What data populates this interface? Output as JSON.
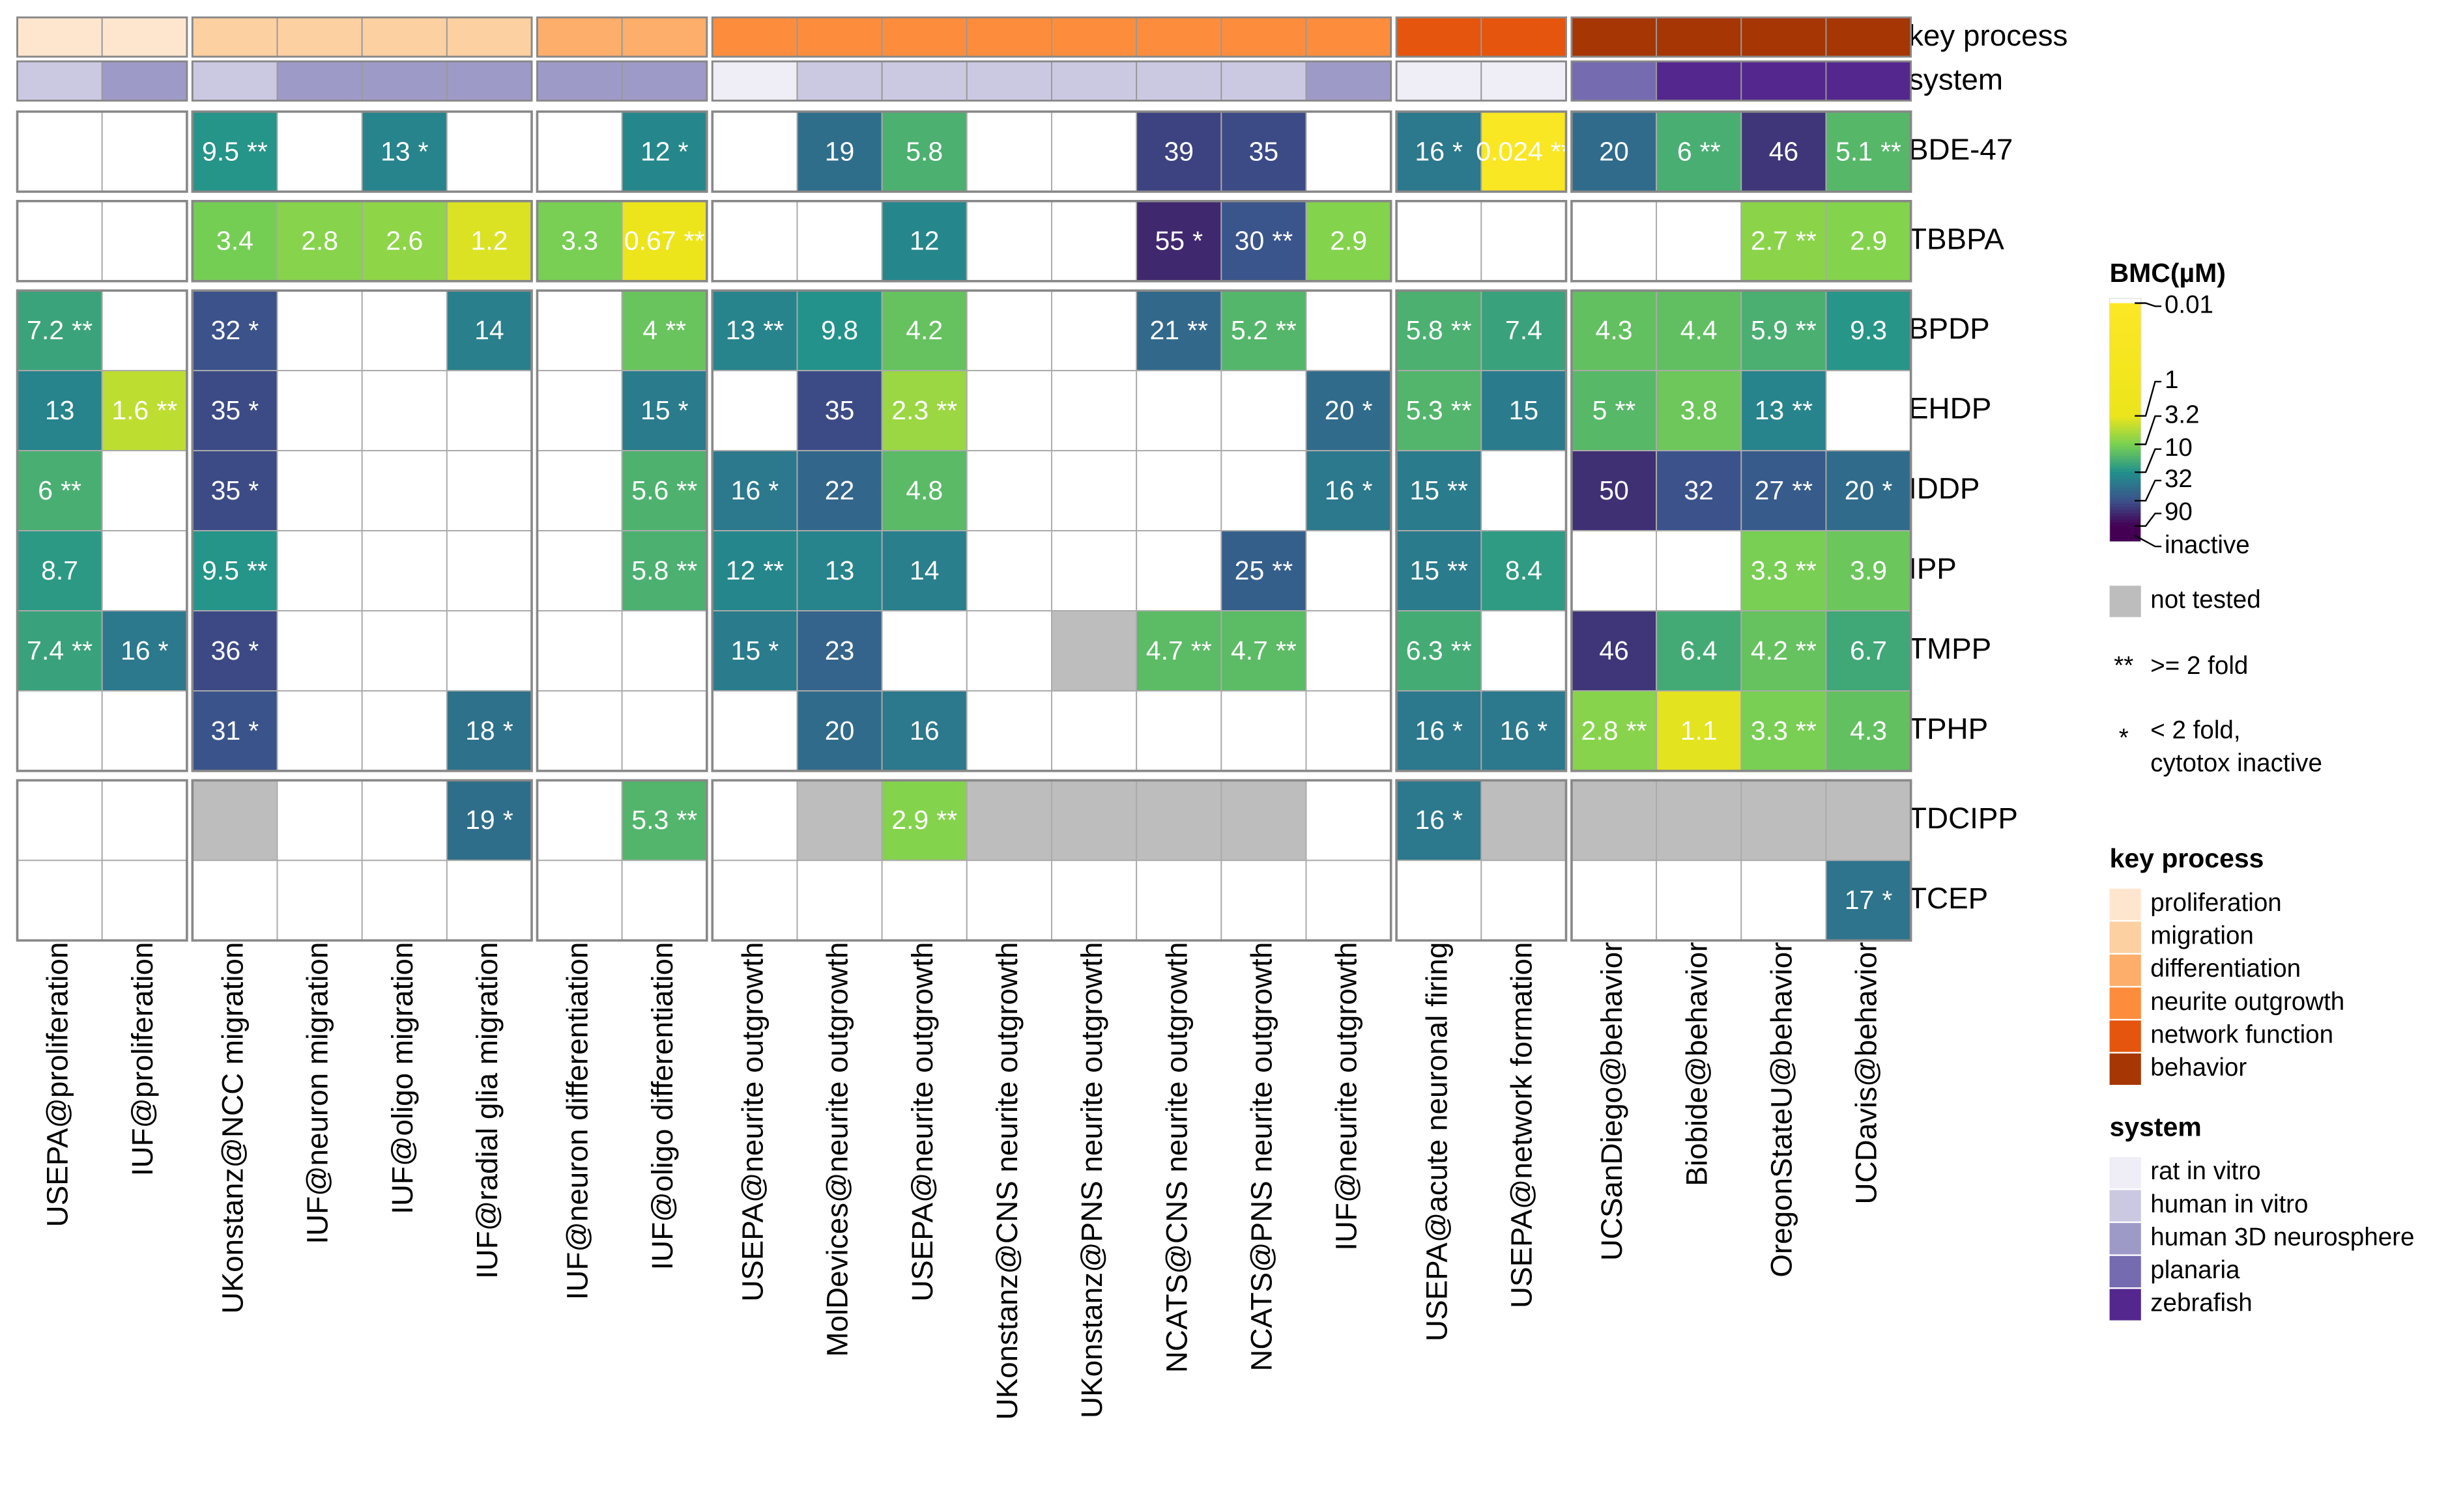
{
  "chart_data": {
    "type": "heatmap",
    "rows": [
      "BDE-47",
      "TBBPA",
      "BPDP",
      "EHDP",
      "IDDP",
      "IPP",
      "TMPP",
      "TPHP",
      "TDCIPP",
      "TCEP"
    ],
    "columns": [
      {
        "label": "USEPA@proliferation",
        "key_process": "proliferation",
        "system": "human in vitro"
      },
      {
        "label": "IUF@proliferation",
        "key_process": "proliferation",
        "system": "human 3D neurosphere"
      },
      {
        "label": "UKonstanz@NCC migration",
        "key_process": "migration",
        "system": "human in vitro"
      },
      {
        "label": "IUF@neuron migration",
        "key_process": "migration",
        "system": "human 3D neurosphere"
      },
      {
        "label": "IUF@oligo migration",
        "key_process": "migration",
        "system": "human 3D neurosphere"
      },
      {
        "label": "IUF@radial glia migration",
        "key_process": "migration",
        "system": "human 3D neurosphere"
      },
      {
        "label": "IUF@neuron differentiation",
        "key_process": "differentiation",
        "system": "human 3D neurosphere"
      },
      {
        "label": "IUF@oligo differentiation",
        "key_process": "differentiation",
        "system": "human 3D neurosphere"
      },
      {
        "label": "USEPA@neurite outgrowth",
        "key_process": "neurite outgrowth",
        "system": "rat in vitro"
      },
      {
        "label": "MolDevices@neurite outgrowth",
        "key_process": "neurite outgrowth",
        "system": "human in vitro"
      },
      {
        "label": "USEPA@neurite outgrowth",
        "key_process": "neurite outgrowth",
        "system": "human in vitro"
      },
      {
        "label": "UKonstanz@CNS neurite outgrowth",
        "key_process": "neurite outgrowth",
        "system": "human in vitro"
      },
      {
        "label": "UKonstanz@PNS neurite outgrowth",
        "key_process": "neurite outgrowth",
        "system": "human in vitro"
      },
      {
        "label": "NCATS@CNS neurite outgrowth",
        "key_process": "neurite outgrowth",
        "system": "human in vitro"
      },
      {
        "label": "NCATS@PNS neurite outgrowth",
        "key_process": "neurite outgrowth",
        "system": "human in vitro"
      },
      {
        "label": "IUF@neurite outgrowth",
        "key_process": "neurite outgrowth",
        "system": "human 3D neurosphere"
      },
      {
        "label": "USEPA@acute neuronal firing",
        "key_process": "network function",
        "system": "rat in vitro"
      },
      {
        "label": "USEPA@network formation",
        "key_process": "network function",
        "system": "rat in vitro"
      },
      {
        "label": "UCSanDiego@behavior",
        "key_process": "behavior",
        "system": "planaria"
      },
      {
        "label": "Biobide@behavior",
        "key_process": "behavior",
        "system": "zebrafish"
      },
      {
        "label": "OregonStateU@behavior",
        "key_process": "behavior",
        "system": "zebrafish"
      },
      {
        "label": "UCDavis@behavior",
        "key_process": "behavior",
        "system": "zebrafish"
      }
    ],
    "values": [
      [
        null,
        null,
        9.5,
        null,
        13,
        null,
        null,
        12,
        null,
        19,
        5.8,
        null,
        null,
        39,
        35,
        null,
        16,
        0.024,
        20,
        6,
        46,
        5.1
      ],
      [
        null,
        null,
        3.4,
        2.8,
        2.6,
        1.2,
        3.3,
        0.67,
        null,
        null,
        12,
        null,
        null,
        55,
        30,
        2.9,
        null,
        null,
        null,
        null,
        2.7,
        2.9
      ],
      [
        7.2,
        null,
        32,
        null,
        null,
        14,
        null,
        4,
        13,
        9.8,
        4.2,
        null,
        null,
        21,
        5.2,
        null,
        5.8,
        7.4,
        4.3,
        4.4,
        5.9,
        9.3
      ],
      [
        13,
        1.6,
        35,
        null,
        null,
        null,
        null,
        15,
        null,
        35,
        2.3,
        null,
        null,
        null,
        null,
        20,
        5.3,
        15,
        5,
        3.8,
        13,
        null
      ],
      [
        6,
        null,
        35,
        null,
        null,
        null,
        null,
        5.6,
        16,
        22,
        4.8,
        null,
        null,
        null,
        null,
        16,
        15,
        null,
        50,
        32,
        27,
        20
      ],
      [
        8.7,
        null,
        9.5,
        null,
        null,
        null,
        null,
        5.8,
        12,
        13,
        14,
        null,
        null,
        null,
        25,
        null,
        15,
        8.4,
        null,
        null,
        3.3,
        3.9
      ],
      [
        7.4,
        16,
        36,
        null,
        null,
        null,
        null,
        null,
        15,
        23,
        null,
        null,
        null,
        4.7,
        4.7,
        null,
        6.3,
        null,
        46,
        6.4,
        4.2,
        6.7
      ],
      [
        null,
        null,
        31,
        null,
        null,
        18,
        null,
        null,
        null,
        20,
        16,
        null,
        null,
        null,
        null,
        null,
        16,
        16,
        2.8,
        1.1,
        3.3,
        4.3
      ],
      [
        null,
        null,
        null,
        null,
        null,
        19,
        null,
        5.3,
        null,
        null,
        2.9,
        null,
        null,
        null,
        null,
        null,
        16,
        null,
        null,
        null,
        null,
        null
      ],
      [
        null,
        null,
        null,
        null,
        null,
        null,
        null,
        null,
        null,
        null,
        null,
        null,
        null,
        null,
        null,
        null,
        null,
        null,
        null,
        null,
        null,
        17
      ]
    ],
    "flags": [
      [
        null,
        null,
        "**",
        null,
        "*",
        null,
        null,
        "*",
        null,
        null,
        null,
        null,
        null,
        null,
        null,
        null,
        "*",
        "**",
        null,
        "**",
        null,
        "**"
      ],
      [
        null,
        null,
        null,
        null,
        null,
        null,
        null,
        "**",
        null,
        null,
        null,
        null,
        null,
        "*",
        "**",
        null,
        null,
        null,
        null,
        null,
        "**",
        null
      ],
      [
        "**",
        null,
        "*",
        null,
        null,
        null,
        null,
        "**",
        "**",
        null,
        null,
        null,
        null,
        "**",
        "**",
        null,
        "**",
        null,
        null,
        null,
        "**",
        null
      ],
      [
        null,
        "**",
        "*",
        null,
        null,
        null,
        null,
        "*",
        null,
        null,
        "**",
        null,
        null,
        null,
        null,
        "*",
        "**",
        null,
        "**",
        null,
        "**",
        null
      ],
      [
        "**",
        null,
        "*",
        null,
        null,
        null,
        null,
        "**",
        "*",
        null,
        null,
        null,
        null,
        null,
        null,
        "*",
        "**",
        null,
        null,
        null,
        "**",
        "*"
      ],
      [
        null,
        null,
        "**",
        null,
        null,
        null,
        null,
        "**",
        "**",
        null,
        null,
        null,
        null,
        null,
        "**",
        null,
        "**",
        null,
        null,
        null,
        "**",
        null
      ],
      [
        "**",
        "*",
        "*",
        null,
        null,
        null,
        null,
        null,
        "*",
        null,
        null,
        null,
        null,
        "**",
        "**",
        null,
        "**",
        null,
        null,
        null,
        "**",
        null
      ],
      [
        null,
        null,
        "*",
        null,
        null,
        "*",
        null,
        null,
        null,
        null,
        null,
        null,
        null,
        null,
        null,
        null,
        "*",
        "*",
        "**",
        null,
        "**",
        null
      ],
      [
        null,
        null,
        null,
        null,
        null,
        "*",
        null,
        "**",
        null,
        null,
        "**",
        null,
        null,
        null,
        null,
        null,
        "*",
        null,
        null,
        null,
        null,
        null
      ],
      [
        null,
        null,
        null,
        null,
        null,
        null,
        null,
        null,
        null,
        null,
        null,
        null,
        null,
        null,
        null,
        null,
        null,
        null,
        null,
        null,
        null,
        "*"
      ]
    ],
    "not_tested": [
      [
        false,
        false,
        false,
        false,
        false,
        false,
        false,
        false,
        false,
        false,
        false,
        false,
        false,
        false,
        false,
        false,
        false,
        false,
        false,
        false,
        false,
        false
      ],
      [
        false,
        false,
        false,
        false,
        false,
        false,
        false,
        false,
        false,
        false,
        false,
        false,
        false,
        false,
        false,
        false,
        false,
        false,
        false,
        false,
        false,
        false
      ],
      [
        false,
        false,
        false,
        false,
        false,
        false,
        false,
        false,
        false,
        false,
        false,
        false,
        false,
        false,
        false,
        false,
        false,
        false,
        false,
        false,
        false,
        false
      ],
      [
        false,
        false,
        false,
        false,
        false,
        false,
        false,
        false,
        false,
        false,
        false,
        false,
        false,
        false,
        false,
        false,
        false,
        false,
        false,
        false,
        false,
        false
      ],
      [
        false,
        false,
        false,
        false,
        false,
        false,
        false,
        false,
        false,
        false,
        false,
        false,
        false,
        false,
        false,
        false,
        false,
        false,
        false,
        false,
        false,
        false
      ],
      [
        false,
        false,
        false,
        false,
        false,
        false,
        false,
        false,
        false,
        false,
        false,
        false,
        false,
        false,
        false,
        false,
        false,
        false,
        false,
        false,
        false,
        false
      ],
      [
        false,
        false,
        false,
        false,
        false,
        false,
        false,
        false,
        false,
        false,
        false,
        false,
        true,
        false,
        false,
        false,
        false,
        false,
        false,
        false,
        false,
        false
      ],
      [
        false,
        false,
        false,
        false,
        false,
        false,
        false,
        false,
        false,
        false,
        false,
        false,
        false,
        false,
        false,
        false,
        false,
        false,
        false,
        false,
        false,
        false
      ],
      [
        false,
        false,
        true,
        false,
        false,
        false,
        false,
        false,
        false,
        true,
        false,
        true,
        true,
        true,
        true,
        false,
        false,
        true,
        true,
        true,
        true,
        true
      ],
      [
        false,
        false,
        false,
        false,
        false,
        false,
        false,
        false,
        false,
        false,
        false,
        false,
        false,
        false,
        false,
        false,
        false,
        false,
        false,
        false,
        false,
        false
      ]
    ],
    "annotation_labels": {
      "key_process": "key process",
      "system": "system"
    },
    "colorbar": {
      "title": "BMC(µM)",
      "ticks": [
        0.01,
        1,
        3.2,
        10,
        32,
        90
      ],
      "tick_colors": [
        "#fde725",
        "#ece51b",
        "#7ad151",
        "#21918c",
        "#3b528b",
        "#440154"
      ],
      "inactive_label": "inactive",
      "inactive_color": "#440154",
      "log": true
    },
    "not_tested_label": "not tested",
    "not_tested_color": "#bdbdbd",
    "flag_legend": [
      {
        "symbol": "**",
        "lines": [
          ">= 2  fold"
        ]
      },
      {
        "symbol": "*",
        "lines": [
          "< 2  fold,",
          "cytotox inactive"
        ]
      }
    ],
    "key_process_legend": {
      "title": "key process",
      "items": [
        {
          "name": "proliferation",
          "color": "#fee6ce"
        },
        {
          "name": "migration",
          "color": "#fdd0a2"
        },
        {
          "name": "differentiation",
          "color": "#fdae6b"
        },
        {
          "name": "neurite outgrowth",
          "color": "#fd8d3c"
        },
        {
          "name": "network function",
          "color": "#e6550d"
        },
        {
          "name": "behavior",
          "color": "#a63603"
        }
      ]
    },
    "system_legend": {
      "title": "system",
      "items": [
        {
          "name": "rat in vitro",
          "color": "#efedf5"
        },
        {
          "name": "human in vitro",
          "color": "#cbc9e2"
        },
        {
          "name": "human 3D neurosphere",
          "color": "#9e9ac8"
        },
        {
          "name": "planaria",
          "color": "#756bb1"
        },
        {
          "name": "zebrafish",
          "color": "#54278f"
        }
      ]
    }
  }
}
